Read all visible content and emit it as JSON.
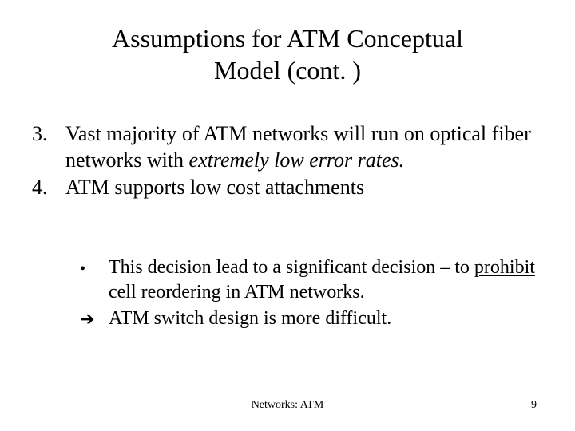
{
  "colors": {
    "background": "#ffffff",
    "text": "#000000"
  },
  "typography": {
    "title_fontsize": 32,
    "body_fontsize": 26,
    "sub_fontsize": 24,
    "footer_fontsize": 14,
    "font_family": "Times New Roman"
  },
  "title": {
    "line1": "Assumptions  for ATM Conceptual",
    "line2": "Model (cont. )"
  },
  "items": [
    {
      "marker": "3.",
      "text_pre": "Vast majority of ATM networks will run on optical fiber networks with ",
      "text_em": "extremely low error rates.",
      "text_post": ""
    },
    {
      "marker": "4.",
      "text_pre": "ATM supports low cost attachments",
      "text_em": "",
      "text_post": ""
    }
  ],
  "subitems": [
    {
      "marker": "•",
      "text_pre": "This decision lead to a significant decision – to ",
      "text_ul": "prohibit ",
      "text_post": "cell reordering in ATM networks."
    },
    {
      "marker": "➔",
      "text_pre": "ATM switch design is more difficult.",
      "text_ul": "",
      "text_post": ""
    }
  ],
  "footer": {
    "center": "Networks: ATM",
    "page": "9"
  }
}
